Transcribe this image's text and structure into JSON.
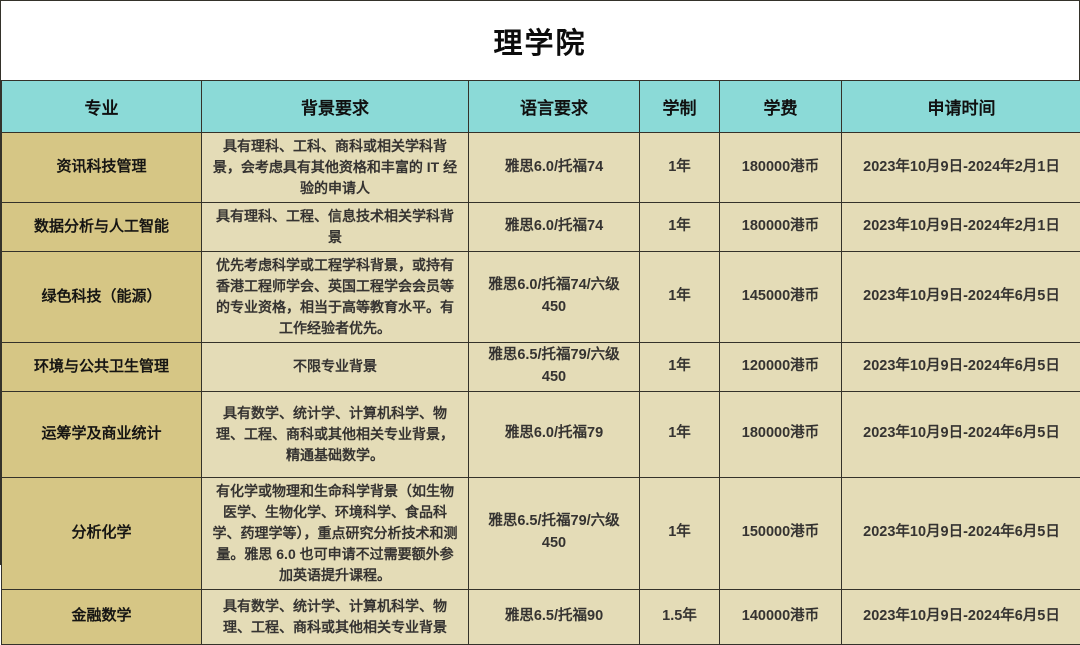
{
  "title": "理学院",
  "colors": {
    "header_bg": "#8bdad7",
    "major_column_bg": "#d6c685",
    "cell_bg": "#e4dcb7",
    "border": "#34322a",
    "title_bg": "#ffffff",
    "text": "#353331"
  },
  "table": {
    "columns": [
      "专业",
      "背景要求",
      "语言要求",
      "学制",
      "学费",
      "申请时间"
    ],
    "rows": [
      {
        "major": "资讯科技管理",
        "background": "具有理科、工科、商科或相关学科背景，会考虑具有其他资格和丰富的 IT 经验的申请人",
        "language": "雅思6.0/托福74",
        "duration": "1年",
        "tuition": "180000港币",
        "apply_time": "2023年10月9日-2024年2月1日"
      },
      {
        "major": "数据分析与人工智能",
        "background": "具有理科、工程、信息技术相关学科背景",
        "language": "雅思6.0/托福74",
        "duration": "1年",
        "tuition": "180000港币",
        "apply_time": "2023年10月9日-2024年2月1日"
      },
      {
        "major": "绿色科技（能源）",
        "background": "优先考虑科学或工程学科背景，或持有香港工程师学会、英国工程学会会员等的专业资格，相当于高等教育水平。有工作经验者优先。",
        "language": "雅思6.0/托福74/六级450",
        "duration": "1年",
        "tuition": "145000港币",
        "apply_time": "2023年10月9日-2024年6月5日"
      },
      {
        "major": "环境与公共卫生管理",
        "background": "不限专业背景",
        "language": "雅思6.5/托福79/六级450",
        "duration": "1年",
        "tuition": "120000港币",
        "apply_time": "2023年10月9日-2024年6月5日"
      },
      {
        "major": "运筹学及商业统计",
        "background": "具有数学、统计学、计算机科学、物理、工程、商科或其他相关专业背景，精通基础数学。",
        "language": "雅思6.0/托福79",
        "duration": "1年",
        "tuition": "180000港币",
        "apply_time": "2023年10月9日-2024年6月5日"
      },
      {
        "major": "分析化学",
        "background": "有化学或物理和生命科学背景（如生物医学、生物化学、环境科学、食品科学、药理学等），重点研究分析技术和测量。雅思 6.0 也可申请不过需要额外参加英语提升课程。",
        "language": "雅思6.5/托福79/六级450",
        "duration": "1年",
        "tuition": "150000港币",
        "apply_time": "2023年10月9日-2024年6月5日"
      },
      {
        "major": "金融数学",
        "background": "具有数学、统计学、计算机科学、物理、工程、商科或其他相关专业背景",
        "language": "雅思6.5/托福90",
        "duration": "1.5年",
        "tuition": "140000港币",
        "apply_time": "2023年10月9日-2024年6月5日"
      }
    ]
  }
}
